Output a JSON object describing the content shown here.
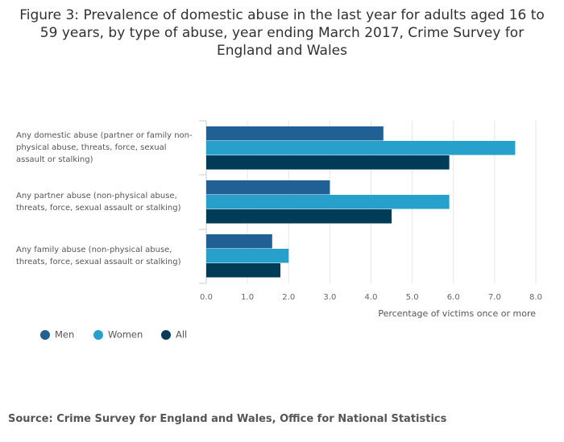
{
  "title": "Figure 3: Prevalence of domestic abuse in the last year for adults aged 16 to 59 years, by type of abuse, year ending March 2017, Crime Survey for England and Wales",
  "source": "Source: Crime Survey for England and Wales, Office for National Statistics",
  "chart_data": {
    "type": "bar",
    "orientation": "horizontal",
    "categories": [
      "Any domestic abuse (partner or family non-physical abuse, threats, force, sexual assault or stalking)",
      "Any partner abuse (non-physical abuse, threats, force, sexual assault or stalking)",
      "Any family abuse (non-physical abuse, threats, force, sexual assault or stalking)"
    ],
    "series": [
      {
        "name": "Men",
        "color": "#206095",
        "values": [
          4.3,
          3.0,
          1.6
        ]
      },
      {
        "name": "Women",
        "color": "#27a0cc",
        "values": [
          7.5,
          5.9,
          2.0
        ]
      },
      {
        "name": "All",
        "color": "#003c57",
        "values": [
          5.9,
          4.5,
          1.8
        ]
      }
    ],
    "xlabel": "Percentage of victims once or more",
    "ylabel": "",
    "xlim": [
      0,
      8
    ],
    "xticks": [
      "0.0",
      "1.0",
      "2.0",
      "3.0",
      "4.0",
      "5.0",
      "6.0",
      "7.0",
      "8.0"
    ],
    "grid": true,
    "legend_position": "bottom-left"
  }
}
